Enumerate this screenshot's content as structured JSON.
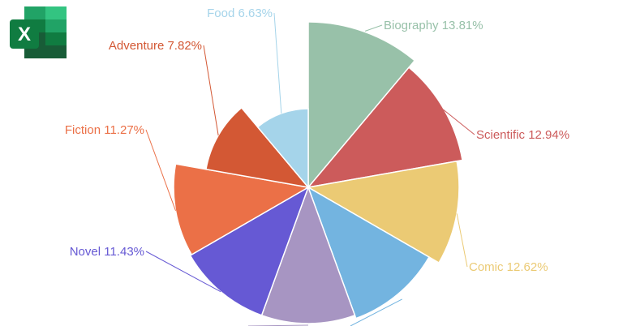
{
  "app_icon": "excel-icon",
  "logo": {
    "letter": "X"
  },
  "chart_data": {
    "type": "pie",
    "subtype": "rose",
    "title": "",
    "slices": [
      {
        "label": "Biography",
        "value": 13.81,
        "color": "#98c1a9"
      },
      {
        "label": "Scientific",
        "value": 12.94,
        "color": "#cc5b5b"
      },
      {
        "label": "Comic",
        "value": 12.62,
        "color": "#ebca74"
      },
      {
        "label": "",
        "value": 10.5,
        "color": "#73b4e0"
      },
      {
        "label": "",
        "value": 10.0,
        "color": "#a795c2"
      },
      {
        "label": "Novel",
        "value": 11.43,
        "color": "#6659d4"
      },
      {
        "label": "Fiction",
        "value": 11.27,
        "color": "#eb7047"
      },
      {
        "label": "Adventure",
        "value": 7.82,
        "color": "#d35834"
      },
      {
        "label": "Food",
        "value": 6.63,
        "color": "#a5d4ea"
      }
    ],
    "display_labels": [
      "Biography 13.81%",
      "Scientific 12.94%",
      "Comic 12.62%",
      "Novel 11.43%",
      "Fiction 11.27%",
      "Adventure 7.82%",
      "Food 6.63%"
    ]
  }
}
